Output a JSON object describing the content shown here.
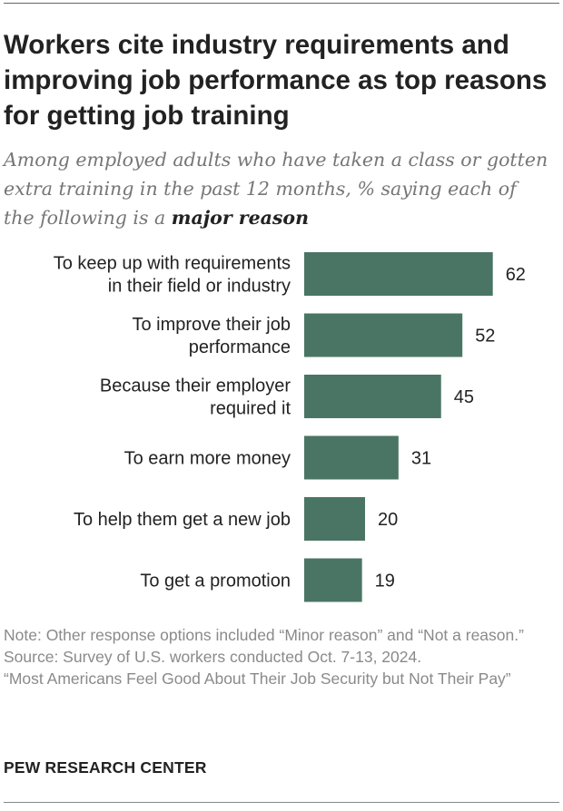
{
  "header": {
    "title": "Workers cite industry requirements and improving job performance as top reasons for getting job training",
    "subtitle_prefix": "Among employed adults who have taken a class or gotten extra training in the past 12 months, % saying each of the following is a ",
    "subtitle_emphasis": "major reason"
  },
  "chart_data": {
    "type": "bar",
    "orientation": "horizontal",
    "categories": [
      [
        "To keep up with requirements",
        "in their field or industry"
      ],
      [
        "To improve their job",
        "performance"
      ],
      [
        "Because their employer",
        "required it"
      ],
      [
        "To earn more money"
      ],
      [
        "To help them get a new job"
      ],
      [
        "To get a promotion"
      ]
    ],
    "values": [
      62,
      52,
      45,
      31,
      20,
      19
    ],
    "title": "",
    "xlabel": "",
    "ylabel": "",
    "xlim": [
      0,
      100
    ],
    "grid": false,
    "legend": "none",
    "bar_color": "#4a7565",
    "data_labels": true
  },
  "footer": {
    "note": "Note: Other response options included “Minor reason” and “Not a reason.”",
    "source": "Source: Survey of U.S. workers conducted Oct. 7-13, 2024.",
    "report": "“Most Americans Feel Good About Their Job Security but Not Their Pay”",
    "brand": "PEW RESEARCH CENTER"
  }
}
